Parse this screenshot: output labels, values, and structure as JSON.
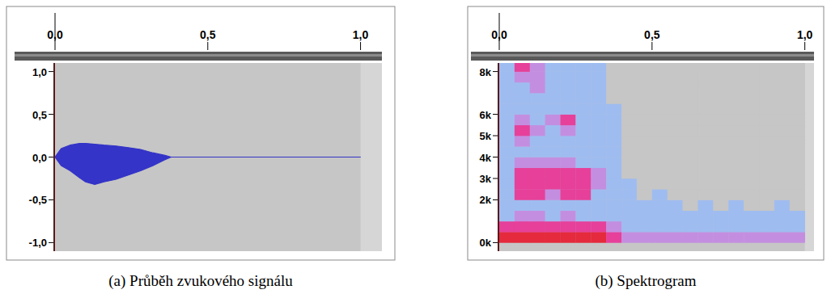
{
  "chart_data": [
    {
      "type": "area",
      "caption": "(a) Průběh zvukového signálu",
      "color": "#3434c8",
      "xlim": [
        0,
        1.07
      ],
      "xticks": [
        {
          "value": 0,
          "label": "0,0"
        },
        {
          "value": 0.5,
          "label": "0,5"
        },
        {
          "value": 1,
          "label": "1,0"
        }
      ],
      "ylim": [
        -1.1,
        1.1
      ],
      "yticks": [
        {
          "value": 1,
          "label": "1,0"
        },
        {
          "value": 0.5,
          "label": "0,5"
        },
        {
          "value": 0,
          "label": "0,0"
        },
        {
          "value": -0.5,
          "label": "-0,5"
        },
        {
          "value": -1,
          "label": "-1,0"
        }
      ],
      "x": [
        0,
        0.02,
        0.05,
        0.08,
        0.1,
        0.13,
        0.16,
        0.2,
        0.24,
        0.28,
        0.32,
        0.36,
        0.38,
        0.5,
        0.75,
        1.0
      ],
      "series": [
        {
          "values": [
            0,
            0.1,
            0.14,
            0.16,
            0.16,
            0.15,
            0.14,
            0.13,
            0.11,
            0.09,
            0.05,
            0.02,
            0,
            0,
            0,
            0
          ]
        },
        {
          "values": [
            0,
            -0.1,
            -0.16,
            -0.24,
            -0.29,
            -0.32,
            -0.29,
            -0.26,
            -0.21,
            -0.16,
            -0.1,
            -0.03,
            0,
            0,
            0,
            0
          ]
        }
      ]
    },
    {
      "type": "heatmap",
      "caption": "(b) Spektrogram",
      "xlim": [
        0,
        1.03
      ],
      "xticks": [
        {
          "value": 0,
          "label": "0,0"
        },
        {
          "value": 0.5,
          "label": "0,5"
        },
        {
          "value": 1,
          "label": "1,0"
        }
      ],
      "ylim": [
        -400,
        8400
      ],
      "yticks": [
        {
          "value": 8000,
          "label": "8k"
        },
        {
          "value": 6000,
          "label": "6k"
        },
        {
          "value": 5000,
          "label": "5k"
        },
        {
          "value": 4000,
          "label": "4k"
        },
        {
          "value": 3000,
          "label": "3k"
        },
        {
          "value": 2000,
          "label": "2k"
        },
        {
          "value": 0,
          "label": "0k"
        }
      ],
      "x_edges": [
        0,
        0.05,
        0.1,
        0.15,
        0.2,
        0.25,
        0.3,
        0.35,
        0.4,
        0.45,
        0.5,
        0.55,
        0.6,
        0.65,
        0.7,
        0.75,
        0.8,
        0.85,
        0.9,
        0.95,
        1.0
      ],
      "y_edges": [
        0,
        500,
        1000,
        1500,
        2000,
        2500,
        3000,
        3500,
        4000,
        4500,
        5000,
        5500,
        6000,
        6500,
        7000,
        7500,
        8000,
        8400
      ],
      "cells": [
        [
          4,
          4,
          4,
          4,
          4,
          4,
          4,
          3,
          2,
          2,
          2,
          2,
          2,
          2,
          2,
          2,
          2,
          2,
          2,
          2
        ],
        [
          3,
          3,
          3,
          3,
          3,
          3,
          3,
          2,
          1,
          1,
          1,
          1,
          1,
          1,
          1,
          1,
          1,
          1,
          1,
          1
        ],
        [
          1,
          2,
          2,
          1,
          2,
          1,
          1,
          1,
          1,
          1,
          1,
          1,
          1,
          1,
          1,
          1,
          1,
          1,
          1,
          1
        ],
        [
          1,
          1,
          1,
          1,
          1,
          1,
          1,
          1,
          1,
          1,
          1,
          1,
          0,
          1,
          0,
          1,
          0,
          0,
          1,
          0
        ],
        [
          1,
          3,
          3,
          2,
          3,
          3,
          1,
          1,
          1,
          0,
          1,
          0,
          0,
          0,
          0,
          0,
          0,
          0,
          0,
          0
        ],
        [
          1,
          3,
          3,
          3,
          3,
          3,
          2,
          1,
          1,
          0,
          0,
          0,
          0,
          0,
          0,
          0,
          0,
          0,
          0,
          0
        ],
        [
          1,
          3,
          3,
          3,
          3,
          3,
          2,
          1,
          0,
          0,
          0,
          0,
          0,
          0,
          0,
          0,
          0,
          0,
          0,
          0
        ],
        [
          1,
          2,
          2,
          2,
          2,
          1,
          1,
          1,
          0,
          0,
          0,
          0,
          0,
          0,
          0,
          0,
          0,
          0,
          0,
          0
        ],
        [
          1,
          1,
          1,
          1,
          1,
          1,
          1,
          1,
          0,
          0,
          0,
          0,
          0,
          0,
          0,
          0,
          0,
          0,
          0,
          0
        ],
        [
          1,
          2,
          1,
          1,
          1,
          1,
          1,
          1,
          0,
          0,
          0,
          0,
          0,
          0,
          0,
          0,
          0,
          0,
          0,
          0
        ],
        [
          1,
          3,
          2,
          1,
          2,
          1,
          1,
          1,
          0,
          0,
          0,
          0,
          0,
          0,
          0,
          0,
          0,
          0,
          0,
          0
        ],
        [
          1,
          2,
          1,
          2,
          3,
          1,
          1,
          1,
          0,
          0,
          0,
          0,
          0,
          0,
          0,
          0,
          0,
          0,
          0,
          0
        ],
        [
          1,
          1,
          1,
          1,
          1,
          1,
          1,
          1,
          0,
          0,
          0,
          0,
          0,
          0,
          0,
          0,
          0,
          0,
          0,
          0
        ],
        [
          1,
          1,
          1,
          1,
          1,
          1,
          1,
          0,
          0,
          0,
          0,
          0,
          0,
          0,
          0,
          0,
          0,
          0,
          0,
          0
        ],
        [
          1,
          1,
          2,
          1,
          1,
          1,
          1,
          0,
          0,
          0,
          0,
          0,
          0,
          0,
          0,
          0,
          0,
          0,
          0,
          0
        ],
        [
          1,
          2,
          2,
          1,
          1,
          1,
          1,
          0,
          0,
          0,
          0,
          0,
          0,
          0,
          0,
          0,
          0,
          0,
          0,
          0
        ],
        [
          1,
          3,
          2,
          1,
          1,
          1,
          1,
          0,
          0,
          0,
          0,
          0,
          0,
          0,
          0,
          0,
          0,
          0,
          0,
          0
        ]
      ]
    }
  ]
}
